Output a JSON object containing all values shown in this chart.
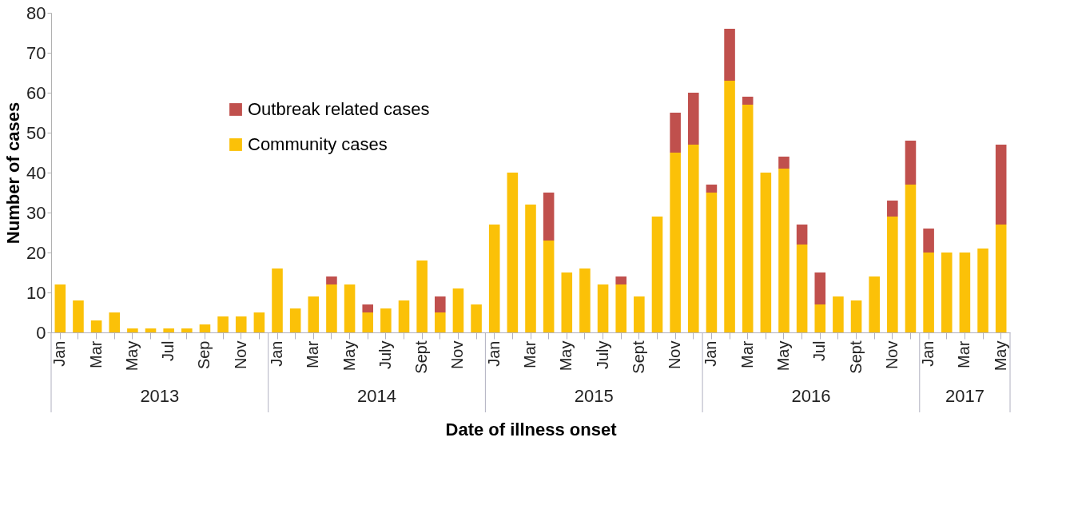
{
  "chart_data": {
    "type": "bar",
    "stacked": true,
    "xlabel": "Date of illness onset",
    "ylabel": "Number of cases",
    "categories": [
      "Jan",
      null,
      "Mar",
      null,
      "May",
      null,
      "Jul",
      null,
      "Sep",
      null,
      "Nov",
      null,
      "Jan",
      null,
      "Mar",
      null,
      "May",
      null,
      "July",
      null,
      "Sept",
      null,
      "Nov",
      null,
      "Jan",
      null,
      "Mar",
      null,
      "May",
      null,
      "July",
      null,
      "Sept",
      null,
      "Nov",
      null,
      "Jan",
      null,
      "Mar",
      null,
      "May",
      null,
      "Jul",
      null,
      "Sept",
      null,
      "Nov",
      null,
      "Jan",
      null,
      "Mar",
      null,
      "May"
    ],
    "series": [
      {
        "name": "Community cases",
        "color": "#fbc108",
        "values": [
          12,
          8,
          3,
          5,
          1,
          1,
          1,
          1,
          2,
          4,
          4,
          5,
          16,
          6,
          9,
          12,
          12,
          5,
          6,
          8,
          18,
          5,
          11,
          7,
          27,
          40,
          32,
          23,
          15,
          16,
          12,
          12,
          9,
          29,
          45,
          47,
          35,
          63,
          57,
          40,
          41,
          22,
          7,
          9,
          8,
          14,
          29,
          37,
          20,
          20,
          20,
          21,
          27
        ]
      },
      {
        "name": "Outbreak related cases",
        "color": "#c0504d",
        "values": [
          null,
          null,
          null,
          null,
          null,
          null,
          null,
          null,
          null,
          null,
          null,
          null,
          null,
          null,
          null,
          2,
          null,
          2,
          null,
          null,
          null,
          4,
          null,
          null,
          null,
          null,
          null,
          12,
          null,
          null,
          null,
          2,
          null,
          null,
          10,
          13,
          2,
          13,
          2,
          null,
          3,
          5,
          8,
          null,
          null,
          null,
          4,
          11,
          6,
          null,
          null,
          null,
          20
        ]
      }
    ],
    "ylim": [
      0,
      80
    ],
    "yticks": [
      0,
      10,
      20,
      30,
      40,
      50,
      60,
      70,
      80
    ],
    "annotations": [
      "2013",
      "2014",
      "2015",
      "2016",
      "2017"
    ],
    "legend": "top left",
    "grid": false
  }
}
